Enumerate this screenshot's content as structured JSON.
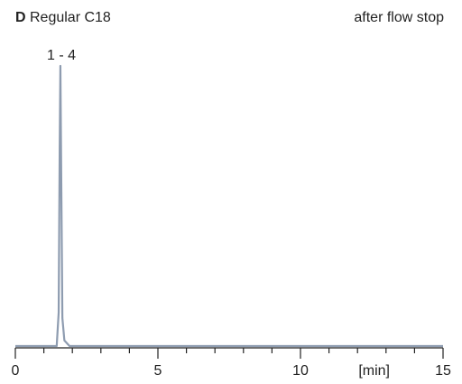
{
  "chart_data": {
    "type": "line",
    "panel_label": "D",
    "title": "Regular C18",
    "subtitle": "after flow stop",
    "annotation": "1 - 4",
    "x_label": "[min]",
    "series": [
      {
        "color": "#8e9cb0",
        "x": [
          0,
          1.45,
          1.52,
          1.555,
          1.58,
          1.61,
          1.65,
          1.72,
          1.9,
          15
        ],
        "values": [
          0,
          0,
          12,
          70,
          100,
          60,
          10,
          2,
          0,
          0
        ]
      }
    ],
    "xlim": [
      0,
      15
    ],
    "xticks": [
      0,
      5,
      10,
      15
    ],
    "minor_xticks": [
      1,
      2,
      3,
      4,
      6,
      7,
      8,
      9,
      11,
      12,
      13,
      14
    ],
    "ylim": [
      0,
      100
    ]
  }
}
